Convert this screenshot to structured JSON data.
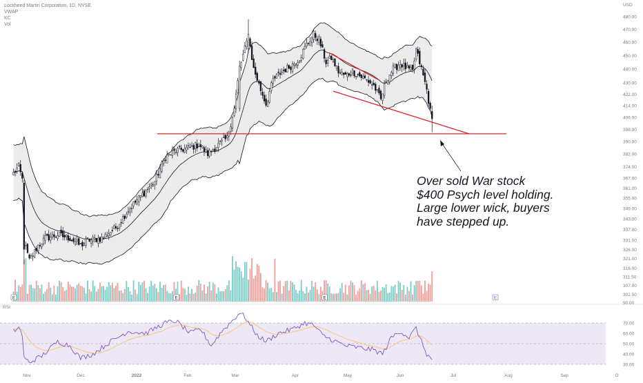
{
  "legend": {
    "symbol": "Lockheed Martin Corporation, 1D, NYSE",
    "line2": "VWAP",
    "line3": "KC",
    "line4": "Vol"
  },
  "rsi_label": "RSI",
  "currency": "USD",
  "annotation": {
    "lines": [
      "Over sold War stock",
      "$400 Psych level holding.",
      "Large lower wick, buyers",
      "have stepped up."
    ]
  },
  "event_marker": "E",
  "colors": {
    "up": "#26a69a",
    "down": "#ef5350",
    "vol_up": "#7fcfc8",
    "vol_down": "#f4a09d",
    "channel": "#131722",
    "channel_fill": "#ececec",
    "rsi_fill": "#ede7f6",
    "rsi_line": "#7e57c2",
    "rsi_ma": "#f5c76a",
    "trendline": "#e0232b"
  },
  "chart_data": {
    "type": "candlestick",
    "y_axis_price": {
      "ticks": [
        302.5,
        307.0,
        311.5,
        316.0,
        321.0,
        326.0,
        331.0,
        337.0,
        343.0,
        349.0,
        355.0,
        361.0,
        367.0,
        374.0,
        382.0,
        390.0,
        398.0,
        406.0,
        414.0,
        422.0,
        430.0,
        440.0,
        450.0,
        460.0,
        470.0,
        480.0
      ],
      "labels": [
        "302.50",
        "307.00",
        "311.50",
        "316.00",
        "321.00",
        "326.00",
        "331.00",
        "337.00",
        "343.00",
        "349.00",
        "355.00",
        "361.00",
        "367.00",
        "374.00",
        "382.00",
        "390.00",
        "398.00",
        "406.00",
        "414.00",
        "422.00",
        "430.00",
        "440.00",
        "450.00",
        "460.00",
        "470.00",
        "480.00"
      ],
      "scale": "log",
      "range": [
        300,
        483
      ]
    },
    "volume_axis_label": "90.00",
    "rsi_axis": {
      "ticks": [
        30,
        40,
        50,
        60,
        70
      ],
      "labels": [
        "30.00",
        "40.00",
        "50.00",
        "60.00",
        "70.00"
      ],
      "band": [
        30,
        70
      ]
    },
    "x_axis": {
      "labels": [
        "Nov",
        "Dec",
        "2022",
        "Feb",
        "Mar",
        "Apr",
        "May",
        "Jun",
        "Jul",
        "Aug",
        "Sep",
        "O"
      ]
    },
    "support_level": 395,
    "anchors": [
      {
        "b": 0,
        "c": 370
      },
      {
        "b": 3,
        "c": 374
      },
      {
        "b": 5,
        "c": 366
      },
      {
        "b": 6,
        "c": 330
      },
      {
        "b": 9,
        "c": 320
      },
      {
        "b": 14,
        "c": 328
      },
      {
        "b": 18,
        "c": 332
      },
      {
        "b": 25,
        "c": 334
      },
      {
        "b": 32,
        "c": 332
      },
      {
        "b": 38,
        "c": 328
      },
      {
        "b": 42,
        "c": 331
      },
      {
        "b": 50,
        "c": 332
      },
      {
        "b": 58,
        "c": 338
      },
      {
        "b": 65,
        "c": 348
      },
      {
        "b": 72,
        "c": 356
      },
      {
        "b": 80,
        "c": 365
      },
      {
        "b": 86,
        "c": 380
      },
      {
        "b": 92,
        "c": 384
      },
      {
        "b": 100,
        "c": 386
      },
      {
        "b": 105,
        "c": 388
      },
      {
        "b": 110,
        "c": 382
      },
      {
        "b": 116,
        "c": 388
      },
      {
        "b": 121,
        "c": 392
      },
      {
        "b": 125,
        "c": 412
      },
      {
        "b": 128,
        "c": 440
      },
      {
        "b": 131,
        "c": 455
      },
      {
        "b": 133,
        "c": 465
      },
      {
        "b": 136,
        "c": 440
      },
      {
        "b": 140,
        "c": 425
      },
      {
        "b": 143,
        "c": 415
      },
      {
        "b": 147,
        "c": 432
      },
      {
        "b": 152,
        "c": 438
      },
      {
        "b": 157,
        "c": 442
      },
      {
        "b": 162,
        "c": 448
      },
      {
        "b": 166,
        "c": 458
      },
      {
        "b": 170,
        "c": 466
      },
      {
        "b": 173,
        "c": 462
      },
      {
        "b": 177,
        "c": 445
      },
      {
        "b": 180,
        "c": 448
      },
      {
        "b": 184,
        "c": 438
      },
      {
        "b": 188,
        "c": 435
      },
      {
        "b": 192,
        "c": 438
      },
      {
        "b": 196,
        "c": 435
      },
      {
        "b": 200,
        "c": 432
      },
      {
        "b": 204,
        "c": 428
      },
      {
        "b": 208,
        "c": 418
      },
      {
        "b": 211,
        "c": 432
      },
      {
        "b": 215,
        "c": 440
      },
      {
        "b": 219,
        "c": 444
      },
      {
        "b": 223,
        "c": 440
      },
      {
        "b": 226,
        "c": 438
      },
      {
        "b": 228,
        "c": 454
      },
      {
        "b": 231,
        "c": 440
      },
      {
        "b": 234,
        "c": 425
      },
      {
        "b": 236,
        "c": 410
      },
      {
        "b": 237,
        "c": 405
      }
    ],
    "rsi_values": [
      {
        "b": 0,
        "v": 62
      },
      {
        "b": 3,
        "v": 66
      },
      {
        "b": 5,
        "v": 58
      },
      {
        "b": 6,
        "v": 36
      },
      {
        "b": 9,
        "v": 32
      },
      {
        "b": 16,
        "v": 38
      },
      {
        "b": 25,
        "v": 52
      },
      {
        "b": 32,
        "v": 48
      },
      {
        "b": 38,
        "v": 36
      },
      {
        "b": 45,
        "v": 40
      },
      {
        "b": 55,
        "v": 52
      },
      {
        "b": 65,
        "v": 62
      },
      {
        "b": 75,
        "v": 60
      },
      {
        "b": 86,
        "v": 70
      },
      {
        "b": 92,
        "v": 72
      },
      {
        "b": 100,
        "v": 60
      },
      {
        "b": 106,
        "v": 64
      },
      {
        "b": 112,
        "v": 48
      },
      {
        "b": 118,
        "v": 62
      },
      {
        "b": 125,
        "v": 74
      },
      {
        "b": 128,
        "v": 80
      },
      {
        "b": 131,
        "v": 76
      },
      {
        "b": 134,
        "v": 68
      },
      {
        "b": 138,
        "v": 58
      },
      {
        "b": 143,
        "v": 52
      },
      {
        "b": 150,
        "v": 60
      },
      {
        "b": 158,
        "v": 64
      },
      {
        "b": 165,
        "v": 70
      },
      {
        "b": 170,
        "v": 68
      },
      {
        "b": 175,
        "v": 58
      },
      {
        "b": 180,
        "v": 54
      },
      {
        "b": 188,
        "v": 48
      },
      {
        "b": 196,
        "v": 46
      },
      {
        "b": 204,
        "v": 44
      },
      {
        "b": 209,
        "v": 40
      },
      {
        "b": 214,
        "v": 56
      },
      {
        "b": 219,
        "v": 62
      },
      {
        "b": 224,
        "v": 56
      },
      {
        "b": 228,
        "v": 65
      },
      {
        "b": 231,
        "v": 52
      },
      {
        "b": 234,
        "v": 40
      },
      {
        "b": 237,
        "v": 34
      }
    ]
  }
}
